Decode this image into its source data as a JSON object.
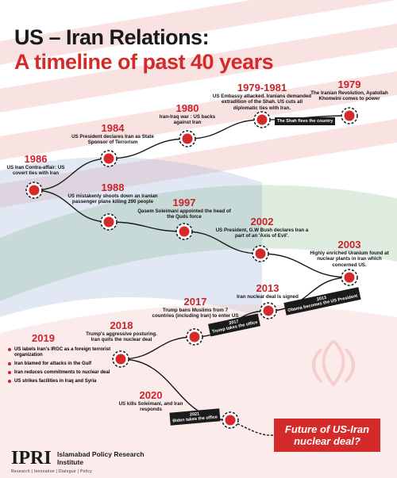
{
  "title": {
    "line1": "US – Iran Relations:",
    "line2": "A timeline of past 40 years"
  },
  "events": [
    {
      "year": "1979",
      "text": "The Iranian Revolution, Ayatollah Khomeini comes to power"
    },
    {
      "year": "1979-1981",
      "text": "US Embassy attacked. Iranians demanded extradition of the Shah. US cuts all diplomatic ties with Iran."
    },
    {
      "year": "1980",
      "text": "Iran-Iraq war : US backs against Iran"
    },
    {
      "year": "1984",
      "text": "US President declares Iran as State Sponsor of Terrorism"
    },
    {
      "year": "1986",
      "text": "US Iran Contra-affair: US covert ties with Iran"
    },
    {
      "year": "1988",
      "text": "US mistakenly shoots down an Iranian passenger plane killing 290 people"
    },
    {
      "year": "1997",
      "text": "Qasem Soleimani appointed the head of the Quds force"
    },
    {
      "year": "2002",
      "text": "US President, G.W Bush declares Iran a part of an 'Axis of Evil'."
    },
    {
      "year": "2003",
      "text": "Highly enriched Uranium found at nuclear plants in Iran which concerned US."
    },
    {
      "year": "2013",
      "text": "Iran nuclear deal is signed"
    },
    {
      "year": "2017",
      "text": "Trump bans Muslims from 7 countries (including Iran) to enter US"
    },
    {
      "year": "2018",
      "text": "Trump's aggressive posturing. Iran quits the nuclear deal"
    },
    {
      "year": "2020",
      "text": "US kills Soleimani, and Iran responds"
    }
  ],
  "event_2019": {
    "year": "2019",
    "items": [
      "US labels Iran's IRGC as a foreign terrorist organization",
      "Iran blamed for attacks in the Gulf",
      "Iran reduces commitments to nuclear deal",
      "US strikes facilities in Iraq and Syria"
    ]
  },
  "tags": [
    {
      "text": "The Shah flees the country"
    },
    {
      "year": "2013",
      "text": "Obama becomes the US President"
    },
    {
      "year": "2017",
      "text": "Trump takes the office"
    },
    {
      "year": "2021",
      "text": "Biden takes the office"
    }
  ],
  "future": "Future of US-Iran nuclear deal?",
  "footer": {
    "logo": "IPRI",
    "name": "Islamabad Policy Research Institute",
    "tagline": "Research | Innovation | Dialogue | Policy"
  }
}
